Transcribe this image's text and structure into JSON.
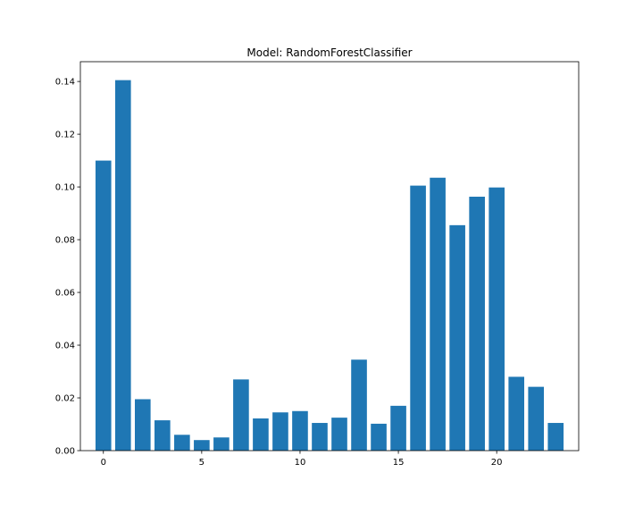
{
  "chart_data": {
    "type": "bar",
    "title": "Model: RandomForestClassifier",
    "xlabel": "",
    "ylabel": "",
    "categories": [
      0,
      1,
      2,
      3,
      4,
      5,
      6,
      7,
      8,
      9,
      10,
      11,
      12,
      13,
      14,
      15,
      16,
      17,
      18,
      19,
      20,
      21,
      22,
      23
    ],
    "values": [
      0.11,
      0.1405,
      0.0195,
      0.0115,
      0.006,
      0.004,
      0.005,
      0.027,
      0.0122,
      0.0145,
      0.015,
      0.0105,
      0.0125,
      0.0345,
      0.0102,
      0.017,
      0.1005,
      0.1035,
      0.0855,
      0.0963,
      0.0998,
      0.028,
      0.0242,
      0.0105
    ],
    "xlim": [
      -1.17,
      24.17
    ],
    "ylim": [
      0,
      0.1475
    ],
    "xticks": [
      0,
      5,
      10,
      15,
      20
    ],
    "xtick_labels": [
      "0",
      "5",
      "10",
      "15",
      "20"
    ],
    "yticks": [
      0.0,
      0.02,
      0.04,
      0.06,
      0.08,
      0.1,
      0.12,
      0.14
    ],
    "ytick_labels": [
      "0.00",
      "0.02",
      "0.04",
      "0.06",
      "0.08",
      "0.10",
      "0.12",
      "0.14"
    ],
    "bar_color": "#1f77b4",
    "grid": false,
    "legend": false
  }
}
